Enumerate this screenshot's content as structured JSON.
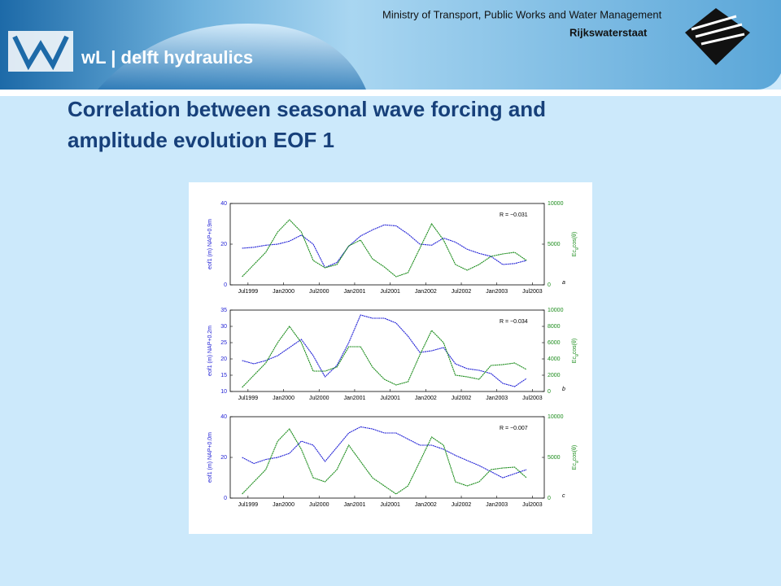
{
  "header": {
    "organization": "Ministry of Transport, Public Works and Water Management",
    "agency": "Rijkswaterstaat",
    "brand": "wL | delft hydraulics"
  },
  "title": [
    "Correlation between seasonal wave forcing and",
    "amplitude evolution EOF 1"
  ],
  "chart_data": [
    {
      "type": "line",
      "panel_label": "a",
      "annotation": "R = −0.031",
      "ylabel": "eof1 (m) NAP+0.9m",
      "y2label": [
        "Ec",
        "g",
        "cos(θ)"
      ],
      "x": [
        "1999-06",
        "1999-08",
        "1999-10",
        "1999-12",
        "2000-02",
        "2000-04",
        "2000-06",
        "2000-08",
        "2000-10",
        "2000-12",
        "2001-02",
        "2001-04",
        "2001-06",
        "2001-08",
        "2001-10",
        "2001-12",
        "2002-02",
        "2002-04",
        "2002-06",
        "2002-08",
        "2002-10",
        "2002-12",
        "2003-02",
        "2003-04",
        "2003-06"
      ],
      "xlim": [
        "1999-04",
        "2003-09"
      ],
      "xticks": [
        {
          "value": "1999-07",
          "label": "Jul1999"
        },
        {
          "value": "2000-01",
          "label": "Jan2000"
        },
        {
          "value": "2000-07",
          "label": "Jul2000"
        },
        {
          "value": "2001-01",
          "label": "Jan2001"
        },
        {
          "value": "2001-07",
          "label": "Jul2001"
        },
        {
          "value": "2002-01",
          "label": "Jan2002"
        },
        {
          "value": "2002-07",
          "label": "Jul2002"
        },
        {
          "value": "2003-01",
          "label": "Jan2003"
        },
        {
          "value": "2003-07",
          "label": "Jul2003"
        }
      ],
      "ylim": [
        0,
        40
      ],
      "yticks": [
        0,
        20,
        40
      ],
      "y2lim": [
        0,
        10000
      ],
      "y2ticks": [
        0,
        5000,
        10000
      ],
      "series": [
        {
          "name": "eof1",
          "color": "#2323d6",
          "values": [
            18,
            18.5,
            19.5,
            20,
            21.5,
            24.5,
            20,
            8.5,
            11,
            19,
            24,
            27,
            29.5,
            29,
            25,
            20,
            19.5,
            23,
            21,
            17.5,
            15.5,
            14,
            10,
            10.5,
            12
          ]
        },
        {
          "name": "Ecg cos(θ)",
          "color": "#1b8c1b",
          "axis": "y2",
          "values": [
            1000,
            2500,
            4000,
            6500,
            8000,
            6500,
            3000,
            2100,
            2500,
            4800,
            5500,
            3200,
            2200,
            1000,
            1500,
            4500,
            7500,
            5500,
            2500,
            1800,
            2500,
            3500,
            3800,
            4000,
            3000
          ]
        }
      ]
    },
    {
      "type": "line",
      "panel_label": "b",
      "annotation": "R = −0.034",
      "ylabel": "eof1 (m) NAP+0.2m",
      "y2label": [
        "Ec",
        "g",
        "cos(θ)"
      ],
      "x": [
        "1999-06",
        "1999-08",
        "1999-10",
        "1999-12",
        "2000-02",
        "2000-04",
        "2000-06",
        "2000-08",
        "2000-10",
        "2000-12",
        "2001-02",
        "2001-04",
        "2001-06",
        "2001-08",
        "2001-10",
        "2001-12",
        "2002-02",
        "2002-04",
        "2002-06",
        "2002-08",
        "2002-10",
        "2002-12",
        "2003-02",
        "2003-04",
        "2003-06"
      ],
      "xlim": [
        "1999-04",
        "2003-09"
      ],
      "xticks": [
        {
          "value": "1999-07",
          "label": "Jul1999"
        },
        {
          "value": "2000-01",
          "label": "Jan2000"
        },
        {
          "value": "2000-07",
          "label": "Jul2000"
        },
        {
          "value": "2001-01",
          "label": "Jan2001"
        },
        {
          "value": "2001-07",
          "label": "Jul2001"
        },
        {
          "value": "2002-01",
          "label": "Jan2002"
        },
        {
          "value": "2002-07",
          "label": "Jul2002"
        },
        {
          "value": "2003-01",
          "label": "Jan2003"
        },
        {
          "value": "2003-07",
          "label": "Jul2003"
        }
      ],
      "ylim": [
        10,
        35
      ],
      "yticks": [
        10,
        15,
        20,
        25,
        30,
        35
      ],
      "y2lim": [
        0,
        10000
      ],
      "y2ticks": [
        0,
        2000,
        4000,
        6000,
        8000,
        10000
      ],
      "series": [
        {
          "name": "eof1",
          "color": "#2323d6",
          "values": [
            19.5,
            18.5,
            19.5,
            21,
            23.5,
            26,
            21,
            14.5,
            18,
            25,
            33.5,
            32.5,
            32.5,
            31,
            27,
            22,
            22.5,
            23.5,
            18.5,
            17,
            16.5,
            15.5,
            12.5,
            11.5,
            14
          ]
        },
        {
          "name": "Ecg cos(θ)",
          "color": "#1b8c1b",
          "axis": "y2",
          "values": [
            500,
            2000,
            3500,
            6000,
            8000,
            6000,
            2500,
            2500,
            3000,
            5500,
            5500,
            3000,
            1500,
            800,
            1200,
            4500,
            7500,
            6000,
            2000,
            1800,
            1500,
            3200,
            3300,
            3500,
            2700
          ]
        }
      ]
    },
    {
      "type": "line",
      "panel_label": "c",
      "annotation": "R = −0.007",
      "ylabel": "eof1 (m) NAP+0.0m",
      "y2label": [
        "Ec",
        "g",
        "cos(θ)"
      ],
      "x": [
        "1999-06",
        "1999-08",
        "1999-10",
        "1999-12",
        "2000-02",
        "2000-04",
        "2000-06",
        "2000-08",
        "2000-10",
        "2000-12",
        "2001-02",
        "2001-04",
        "2001-06",
        "2001-08",
        "2001-10",
        "2001-12",
        "2002-02",
        "2002-04",
        "2002-06",
        "2002-08",
        "2002-10",
        "2002-12",
        "2003-02",
        "2003-04",
        "2003-06"
      ],
      "xlim": [
        "1999-04",
        "2003-09"
      ],
      "xticks": [
        {
          "value": "1999-07",
          "label": "Jul1999"
        },
        {
          "value": "2000-01",
          "label": "Jan2000"
        },
        {
          "value": "2000-07",
          "label": "Jul2000"
        },
        {
          "value": "2001-01",
          "label": "Jan2001"
        },
        {
          "value": "2001-07",
          "label": "Jul2001"
        },
        {
          "value": "2002-01",
          "label": "Jan2002"
        },
        {
          "value": "2002-07",
          "label": "Jul2002"
        },
        {
          "value": "2003-01",
          "label": "Jan2003"
        },
        {
          "value": "2003-07",
          "label": "Jul2003"
        }
      ],
      "ylim": [
        0,
        40
      ],
      "yticks": [
        0,
        20,
        40
      ],
      "y2lim": [
        0,
        10000
      ],
      "y2ticks": [
        0,
        5000,
        10000
      ],
      "series": [
        {
          "name": "eof1",
          "color": "#2323d6",
          "values": [
            20,
            17,
            19,
            20,
            22,
            28,
            26,
            18,
            25,
            32,
            35,
            34,
            32,
            32,
            29,
            26,
            26,
            24,
            21,
            18.5,
            16,
            13,
            10,
            12,
            14
          ]
        },
        {
          "name": "Ecg cos(θ)",
          "color": "#1b8c1b",
          "axis": "y2",
          "values": [
            500,
            2000,
            3500,
            7000,
            8500,
            6000,
            2500,
            2000,
            3500,
            6500,
            4500,
            2500,
            1500,
            500,
            1500,
            4500,
            7500,
            6500,
            2000,
            1500,
            2000,
            3500,
            3700,
            3800,
            2500
          ]
        }
      ]
    }
  ]
}
